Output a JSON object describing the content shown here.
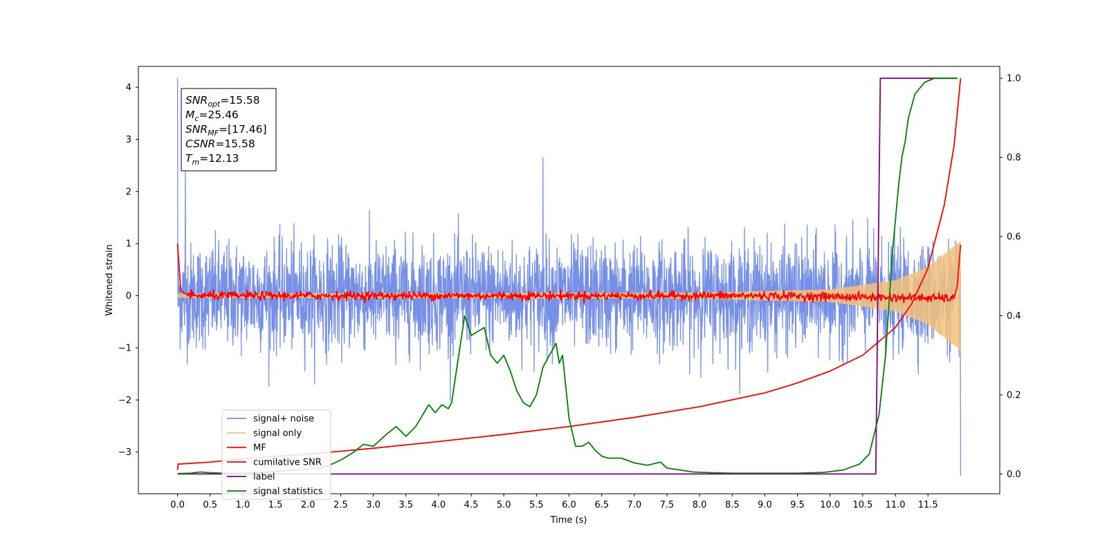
{
  "chart_data": {
    "type": "line",
    "xlabel": "Time (s)",
    "ylabel": "Whitened strain",
    "xlim": [
      -0.6,
      12.6
    ],
    "ylim": [
      -3.8,
      4.4
    ],
    "y2lim": [
      -0.05,
      1.03
    ],
    "grid": false,
    "legend_placement": "lower-left",
    "x_ticks": [
      "0.0",
      "0.5",
      "1.0",
      "1.5",
      "2.0",
      "2.5",
      "3.0",
      "3.5",
      "4.0",
      "4.5",
      "5.0",
      "5.5",
      "6.0",
      "6.5",
      "7.0",
      "7.5",
      "8.0",
      "8.5",
      "9.0",
      "9.5",
      "10.0",
      "10.5",
      "11.0",
      "11.5"
    ],
    "y_ticks": [
      "−3",
      "−2",
      "−1",
      "0",
      "1",
      "2",
      "3",
      "4"
    ],
    "y2_ticks": [
      "0.0",
      "0.2",
      "0.4",
      "0.6",
      "0.8",
      "1.0"
    ],
    "annotation": [
      {
        "sym": "SNR",
        "sub": "opt",
        "rest": "=15.58"
      },
      {
        "sym": "M",
        "sub": "c",
        "rest": "=25.46"
      },
      {
        "sym": "SNR",
        "sub": "MF",
        "rest": "=[17.46]"
      },
      {
        "sym": "CSNR",
        "sub": "",
        "rest": "=15.58"
      },
      {
        "sym": "T",
        "sub": "m",
        "rest": "=12.13"
      }
    ],
    "series": [
      {
        "name": "signal+ noise",
        "color": "#7590e6",
        "axis": "left",
        "form": "noise",
        "x_range": [
          0.0,
          12.0
        ],
        "spread": 0.5,
        "peaks": [
          [
            0.0,
            4.18
          ],
          [
            0.12,
            2.42
          ],
          [
            5.6,
            2.65
          ],
          [
            12.0,
            -3.45
          ]
        ]
      },
      {
        "name": "signal only",
        "color": "#f5c27a",
        "axis": "left",
        "form": "chirp",
        "x_range": [
          0.0,
          12.0
        ],
        "envelope": [
          [
            0.0,
            0.04
          ],
          [
            8.0,
            0.06
          ],
          [
            10.0,
            0.12
          ],
          [
            11.0,
            0.3
          ],
          [
            11.5,
            0.55
          ],
          [
            12.0,
            1.05
          ]
        ]
      },
      {
        "name": "MF",
        "color": "#ff0000",
        "axis": "left",
        "form": "mf",
        "x": [
          0.0,
          0.05,
          0.1,
          0.2,
          1.0,
          3.0,
          6.0,
          9.0,
          11.9,
          11.95,
          12.0
        ],
        "y": [
          1.0,
          0.1,
          0.05,
          0.0,
          0.0,
          0.0,
          0.0,
          0.0,
          -0.05,
          0.2,
          0.98
        ]
      },
      {
        "name": "cumilative SNR",
        "color": "#ff0000",
        "axis": "right",
        "form": "line",
        "x": [
          0.0,
          0.01,
          0.5,
          1.0,
          2.0,
          3.0,
          4.0,
          5.0,
          6.0,
          7.0,
          8.0,
          9.0,
          9.5,
          10.0,
          10.5,
          11.0,
          11.25,
          11.5,
          11.75,
          11.9,
          12.0
        ],
        "y": [
          0.01,
          0.025,
          0.03,
          0.038,
          0.05,
          0.065,
          0.082,
          0.1,
          0.12,
          0.143,
          0.17,
          0.205,
          0.23,
          0.26,
          0.3,
          0.37,
          0.43,
          0.52,
          0.68,
          0.83,
          1.0
        ]
      },
      {
        "name": "label",
        "color": "#800080",
        "axis": "right",
        "form": "line",
        "x": [
          0.0,
          10.7,
          10.77,
          11.95
        ],
        "y": [
          0.0,
          0.0,
          1.0,
          1.0
        ]
      },
      {
        "name": "signal statistics",
        "color": "#008000",
        "axis": "right",
        "form": "line",
        "x": [
          0.0,
          0.2,
          0.35,
          0.5,
          0.7,
          1.0,
          1.3,
          1.5,
          1.7,
          2.0,
          2.3,
          2.5,
          2.7,
          2.85,
          3.0,
          3.1,
          3.2,
          3.35,
          3.5,
          3.65,
          3.85,
          3.95,
          4.05,
          4.15,
          4.2,
          4.3,
          4.4,
          4.5,
          4.6,
          4.7,
          4.8,
          4.9,
          5.0,
          5.1,
          5.2,
          5.3,
          5.4,
          5.5,
          5.6,
          5.7,
          5.8,
          5.85,
          5.9,
          5.95,
          6.0,
          6.1,
          6.2,
          6.3,
          6.4,
          6.5,
          6.6,
          6.8,
          7.0,
          7.2,
          7.4,
          7.5,
          7.7,
          7.9,
          8.2,
          8.5,
          9.0,
          9.5,
          9.9,
          10.2,
          10.45,
          10.6,
          10.75,
          10.85,
          10.95,
          11.05,
          11.1,
          11.15,
          11.2,
          11.3,
          11.45,
          11.6,
          11.75,
          11.95
        ],
        "y": [
          0.001,
          0.002,
          0.005,
          0.003,
          0.002,
          0.002,
          0.004,
          0.006,
          0.009,
          0.012,
          0.02,
          0.035,
          0.055,
          0.075,
          0.07,
          0.085,
          0.1,
          0.12,
          0.095,
          0.12,
          0.175,
          0.155,
          0.175,
          0.165,
          0.18,
          0.29,
          0.4,
          0.35,
          0.36,
          0.37,
          0.3,
          0.28,
          0.3,
          0.26,
          0.21,
          0.18,
          0.17,
          0.2,
          0.27,
          0.3,
          0.33,
          0.28,
          0.3,
          0.22,
          0.14,
          0.07,
          0.07,
          0.08,
          0.06,
          0.045,
          0.04,
          0.04,
          0.028,
          0.022,
          0.03,
          0.015,
          0.01,
          0.005,
          0.003,
          0.002,
          0.002,
          0.002,
          0.004,
          0.01,
          0.025,
          0.05,
          0.15,
          0.3,
          0.55,
          0.73,
          0.8,
          0.84,
          0.9,
          0.96,
          0.99,
          1.0,
          1.0,
          1.0
        ]
      }
    ]
  }
}
